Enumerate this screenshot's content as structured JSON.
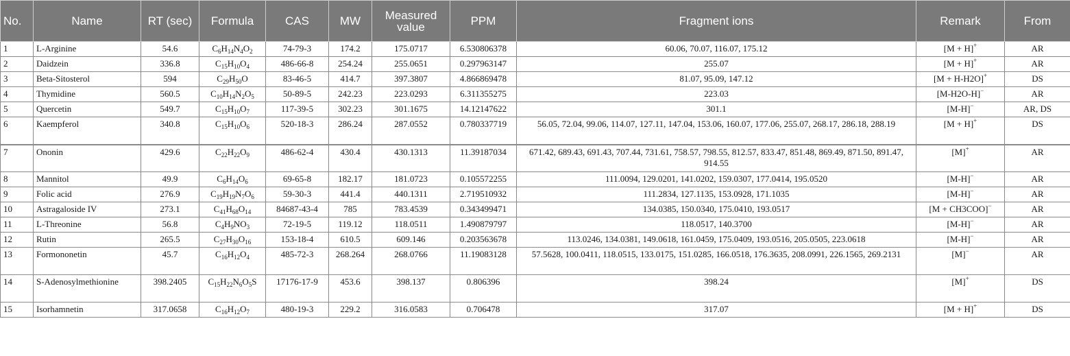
{
  "table": {
    "headers": {
      "no": "No.",
      "name": "Name",
      "rt": "RT (sec)",
      "formula": "Formula",
      "cas": "CAS",
      "mw": "MW",
      "measured": "Measured value",
      "ppm": "PPM",
      "fragments": "Fragment ions",
      "remark": "Remark",
      "from": "From"
    },
    "rows": [
      {
        "no": "1",
        "name": "L-Arginine",
        "rt": "54.6",
        "formula": [
          [
            "C",
            "6"
          ],
          [
            "H",
            "14"
          ],
          [
            "N",
            "4"
          ],
          [
            "O",
            "2"
          ]
        ],
        "cas": "74-79-3",
        "mw": "174.2",
        "measured": "175.0717",
        "ppm": "6.530806378",
        "fragments": "60.06, 70.07, 116.07, 175.12",
        "remark": {
          "base": "[M + H]",
          "sup": "+"
        },
        "from": "AR"
      },
      {
        "no": "2",
        "name": "Daidzein",
        "rt": "336.8",
        "formula": [
          [
            "C",
            "15"
          ],
          [
            "H",
            "10"
          ],
          [
            "O",
            "4"
          ]
        ],
        "cas": "486-66-8",
        "mw": "254.24",
        "measured": "255.0651",
        "ppm": "0.297963147",
        "fragments": "255.07",
        "remark": {
          "base": "[M + H]",
          "sup": "+"
        },
        "from": "AR"
      },
      {
        "no": "3",
        "name": "Beta-Sitosterol",
        "rt": "594",
        "formula": [
          [
            "C",
            "29"
          ],
          [
            "H",
            "50"
          ],
          [
            "O",
            ""
          ]
        ],
        "cas": "83-46-5",
        "mw": "414.7",
        "measured": "397.3807",
        "ppm": "4.866869478",
        "fragments": "81.07, 95.09, 147.12",
        "remark": {
          "base": "[M + H-H2O]",
          "sup": "+"
        },
        "from": "DS"
      },
      {
        "no": "4",
        "name": "Thymidine",
        "rt": "560.5",
        "formula": [
          [
            "C",
            "10"
          ],
          [
            "H",
            "14"
          ],
          [
            "N",
            "2"
          ],
          [
            "O",
            "5"
          ]
        ],
        "cas": "50-89-5",
        "mw": "242.23",
        "measured": "223.0293",
        "ppm": "6.311355275",
        "fragments": "223.03",
        "remark": {
          "base": "[M-H2O-H]",
          "sup": "−"
        },
        "from": "AR"
      },
      {
        "no": "5",
        "name": "Quercetin",
        "rt": "549.7",
        "formula": [
          [
            "C",
            "15"
          ],
          [
            "H",
            "10"
          ],
          [
            "O",
            "7"
          ]
        ],
        "cas": "117-39-5",
        "mw": "302.23",
        "measured": "301.1675",
        "ppm": "14.12147622",
        "fragments": "301.1",
        "remark": {
          "base": "[M-H]",
          "sup": "−"
        },
        "from": "AR, DS"
      },
      {
        "no": "6",
        "name": "Kaempferol",
        "rt": "340.8",
        "formula": [
          [
            "C",
            "15"
          ],
          [
            "H",
            "10"
          ],
          [
            "O",
            "6"
          ]
        ],
        "cas": "520-18-3",
        "mw": "286.24",
        "measured": "287.0552",
        "ppm": "0.780337719",
        "fragments": "56.05, 72.04, 99.06, 114.07, 127.11, 147.04, 153.06, 160.07, 177.06, 255.07, 268.17, 286.18, 288.19",
        "remark": {
          "base": "[M + H]",
          "sup": "+"
        },
        "from": "DS"
      },
      {
        "no": "7",
        "name": "Ononin",
        "rt": "429.6",
        "formula": [
          [
            "C",
            "22"
          ],
          [
            "H",
            "22"
          ],
          [
            "O",
            "9"
          ]
        ],
        "cas": "486-62-4",
        "mw": "430.4",
        "measured": "430.1313",
        "ppm": "11.39187034",
        "fragments": "671.42, 689.43, 691.43, 707.44, 731.61, 758.57, 798.55, 812.57, 833.47, 851.48, 869.49, 871.50, 891.47, 914.55",
        "remark": {
          "base": "[M]",
          "sup": "+"
        },
        "from": "AR"
      },
      {
        "no": "8",
        "name": "Mannitol",
        "rt": "49.9",
        "formula": [
          [
            "C",
            "6"
          ],
          [
            "H",
            "14"
          ],
          [
            "O",
            "6"
          ]
        ],
        "cas": "69-65-8",
        "mw": "182.17",
        "measured": "181.0723",
        "ppm": "0.105572255",
        "fragments": "111.0094, 129.0201, 141.0202, 159.0307, 177.0414, 195.0520",
        "remark": {
          "base": "[M-H]",
          "sup": "−"
        },
        "from": "AR"
      },
      {
        "no": "9",
        "name": "Folic acid",
        "rt": "276.9",
        "formula": [
          [
            "C",
            "19"
          ],
          [
            "H",
            "19"
          ],
          [
            "N",
            "7"
          ],
          [
            "O",
            "6"
          ]
        ],
        "cas": "59-30-3",
        "mw": "441.4",
        "measured": "440.1311",
        "ppm": "2.719510932",
        "fragments": "111.2834, 127.1135, 153.0928, 171.1035",
        "remark": {
          "base": "[M-H]",
          "sup": "−"
        },
        "from": "AR"
      },
      {
        "no": "10",
        "name": "Astragaloside IV",
        "rt": "273.1",
        "formula": [
          [
            "C",
            "41"
          ],
          [
            "H",
            "68"
          ],
          [
            "O",
            "14"
          ]
        ],
        "cas": "84687-43-4",
        "mw": "785",
        "measured": "783.4539",
        "ppm": "0.343499471",
        "fragments": "134.0385, 150.0340, 175.0410, 193.0517",
        "remark": {
          "base": "[M + CH3COO]",
          "sup": "−"
        },
        "from": "AR"
      },
      {
        "no": "11",
        "name": "L-Threonine",
        "rt": "56.8",
        "formula": [
          [
            "C",
            "4"
          ],
          [
            "H",
            "9"
          ],
          [
            "NO",
            "3"
          ]
        ],
        "cas": "72-19-5",
        "mw": "119.12",
        "measured": "118.0511",
        "ppm": "1.490879797",
        "fragments": "118.0517, 140.3700",
        "remark": {
          "base": "[M-H]",
          "sup": "−"
        },
        "from": "AR"
      },
      {
        "no": "12",
        "name": "Rutin",
        "rt": "265.5",
        "formula": [
          [
            "C",
            "27"
          ],
          [
            "H",
            "30"
          ],
          [
            "O",
            "16"
          ]
        ],
        "cas": "153-18-4",
        "mw": "610.5",
        "measured": "609.146",
        "ppm": "0.203563678",
        "fragments": "113.0246, 134.0381, 149.0618, 161.0459, 175.0409, 193.0516, 205.0505, 223.0618",
        "remark": {
          "base": "[M-H]",
          "sup": "−"
        },
        "from": "AR"
      },
      {
        "no": "13",
        "name": "Formononetin",
        "rt": "45.7",
        "formula": [
          [
            "C",
            "16"
          ],
          [
            "H",
            "12"
          ],
          [
            "O",
            "4"
          ]
        ],
        "cas": "485-72-3",
        "mw": "268.264",
        "measured": "268.0766",
        "ppm": "11.19083128",
        "fragments": "57.5628, 100.0411, 118.0515, 133.0175, 151.0285, 166.0518, 176.3635, 208.0991, 226.1565, 269.2131",
        "remark": {
          "base": "[M]",
          "sup": "−"
        },
        "from": "AR"
      },
      {
        "no": "14",
        "name": "S-Adenosylmethionine",
        "rt": "398.2405",
        "formula": [
          [
            "C",
            "15"
          ],
          [
            "H",
            "22"
          ],
          [
            "N",
            "6"
          ],
          [
            "O",
            "5"
          ],
          [
            "S",
            ""
          ]
        ],
        "cas": "17176-17-9",
        "mw": "453.6",
        "measured": "398.137",
        "ppm": "0.806396",
        "fragments": "398.24",
        "remark": {
          "base": "[M]",
          "sup": "+"
        },
        "from": "DS"
      },
      {
        "no": "15",
        "name": "Isorhamnetin",
        "rt": "317.0658",
        "formula": [
          [
            "C",
            "16"
          ],
          [
            "H",
            "12"
          ],
          [
            "O",
            "7"
          ]
        ],
        "cas": "480-19-3",
        "mw": "229.2",
        "measured": "316.0583",
        "ppm": "0.706478",
        "fragments": "317.07",
        "remark": {
          "base": "[M + H]",
          "sup": "+"
        },
        "from": "DS"
      }
    ]
  }
}
